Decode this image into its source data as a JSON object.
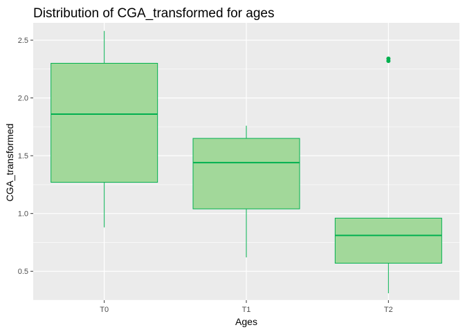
{
  "chart_data": {
    "type": "boxplot",
    "title": "Distribution of CGA_transformed for ages",
    "xlabel": "Ages",
    "ylabel": "CGA_transformed",
    "categories": [
      "T0",
      "T1",
      "T2"
    ],
    "yticks": [
      "0.5",
      "1.0",
      "1.5",
      "2.0",
      "2.5"
    ],
    "ylim": [
      0.25,
      2.65
    ],
    "grid": true,
    "boxes": [
      {
        "category": "T0",
        "whisker_low": 0.88,
        "q1": 1.27,
        "median": 1.86,
        "q3": 2.3,
        "whisker_high": 2.58,
        "outliers": []
      },
      {
        "category": "T1",
        "whisker_low": 0.62,
        "q1": 1.04,
        "median": 1.44,
        "q3": 1.65,
        "whisker_high": 1.76,
        "outliers": []
      },
      {
        "category": "T2",
        "whisker_low": 0.31,
        "q1": 0.57,
        "median": 0.81,
        "q3": 0.96,
        "whisker_high": 0.96,
        "outliers": [
          2.32,
          2.34
        ]
      }
    ],
    "colors": {
      "fill": "#a2d89a",
      "stroke": "#00b04f",
      "panel": "#ebebeb",
      "grid": "#ffffff"
    }
  }
}
